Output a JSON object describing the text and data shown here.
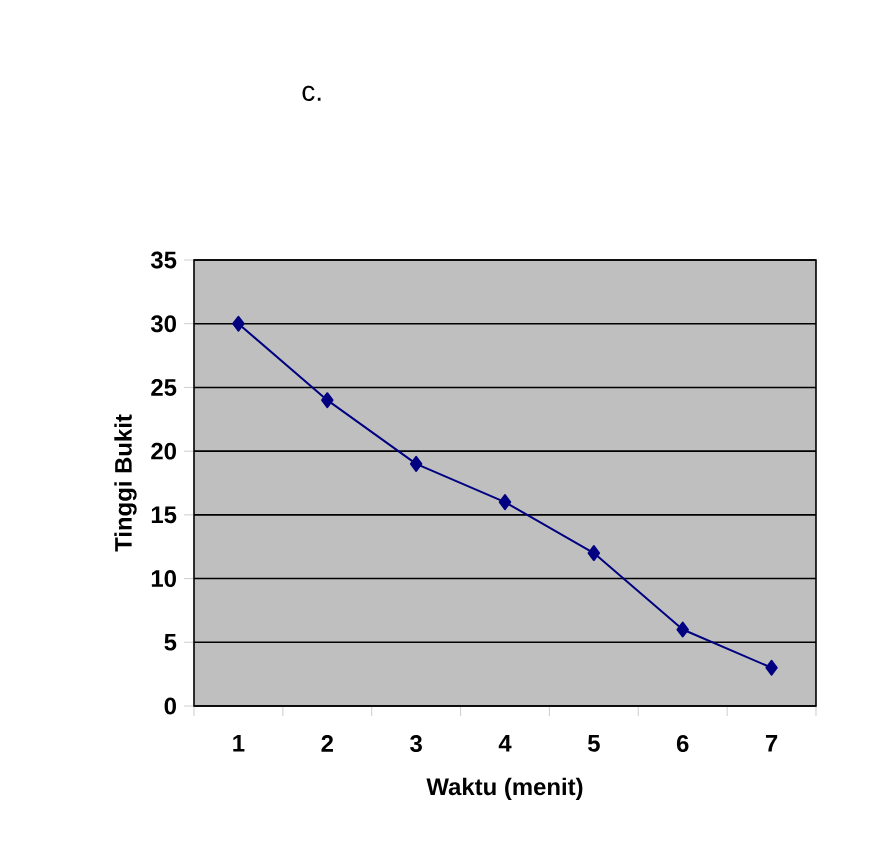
{
  "chart_data": {
    "type": "line",
    "title": "c.",
    "xlabel": "Waktu (menit)",
    "ylabel": "Tinggi Bukit",
    "categories": [
      "1",
      "2",
      "3",
      "4",
      "5",
      "6",
      "7"
    ],
    "series": [
      {
        "color": "#000080",
        "values": [
          30,
          24,
          19,
          16,
          12,
          6,
          3
        ]
      }
    ],
    "ylim": [
      0,
      35
    ],
    "yticks": [
      0,
      5,
      10,
      15,
      20,
      25,
      30,
      35
    ],
    "grid": "y",
    "marker": "diamond",
    "line_style": "solid"
  }
}
